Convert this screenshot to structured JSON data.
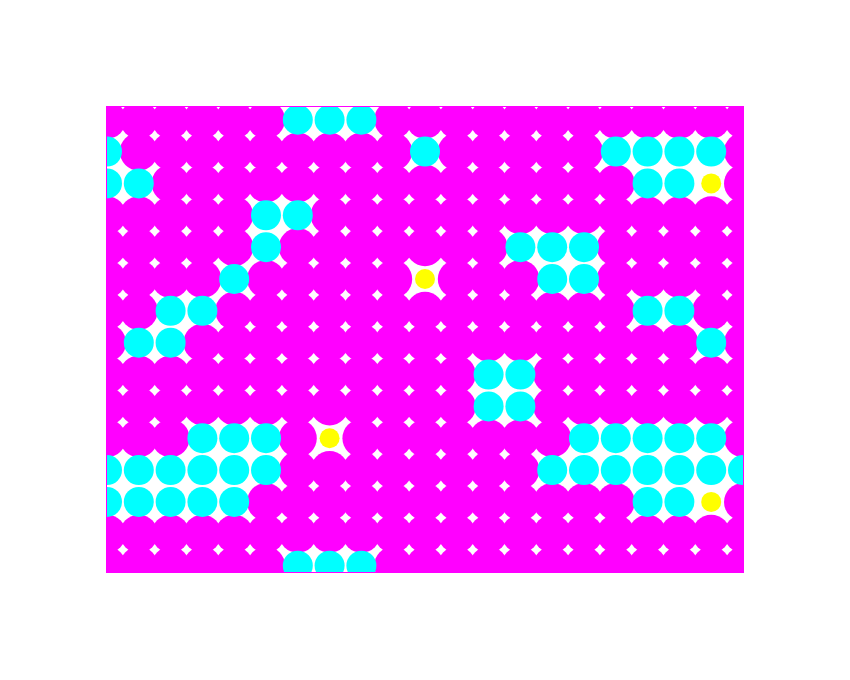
{
  "chart_data": {
    "type": "scatter",
    "xlim": [
      0,
      100
    ],
    "ylim": [
      0,
      73
    ],
    "grid": false,
    "tick_labels": false,
    "series": [
      {
        "color": "#ff00ff",
        "marker": "circle",
        "x": [
          0,
          5,
          10,
          15,
          20,
          25,
          45,
          50,
          55,
          60,
          65,
          70,
          75,
          80,
          85,
          90,
          95,
          100,
          5,
          10,
          15,
          20,
          25,
          30,
          35,
          40,
          45,
          55,
          60,
          65,
          70,
          75,
          100,
          10,
          15,
          20,
          25,
          30,
          35,
          40,
          45,
          50,
          55,
          60,
          65,
          70,
          75,
          80,
          100,
          0,
          5,
          10,
          15,
          20,
          35,
          40,
          45,
          50,
          55,
          60,
          65,
          70,
          75,
          80,
          85,
          90,
          95,
          100,
          0,
          5,
          10,
          15,
          20,
          30,
          35,
          40,
          45,
          50,
          55,
          60,
          80,
          85,
          90,
          95,
          100,
          0,
          5,
          10,
          15,
          25,
          30,
          35,
          40,
          45,
          55,
          60,
          65,
          80,
          85,
          90,
          95,
          100,
          0,
          5,
          20,
          25,
          30,
          35,
          40,
          45,
          50,
          55,
          60,
          65,
          70,
          75,
          80,
          95,
          100,
          0,
          15,
          20,
          25,
          30,
          35,
          40,
          45,
          50,
          55,
          60,
          65,
          70,
          75,
          80,
          85,
          90,
          100,
          0,
          5,
          10,
          15,
          20,
          25,
          30,
          35,
          40,
          45,
          50,
          55,
          70,
          75,
          80,
          85,
          90,
          95,
          100,
          0,
          5,
          10,
          15,
          20,
          25,
          30,
          35,
          40,
          45,
          50,
          55,
          70,
          75,
          80,
          85,
          90,
          95,
          100,
          0,
          5,
          10,
          30,
          40,
          45,
          50,
          55,
          60,
          65,
          70,
          100,
          30,
          35,
          40,
          45,
          50,
          55,
          60,
          65,
          25,
          30,
          35,
          40,
          45,
          50,
          55,
          60,
          65,
          70,
          75,
          80,
          100,
          0,
          5,
          10,
          15,
          20,
          25,
          30,
          35,
          40,
          45,
          50,
          55,
          60,
          65,
          70,
          75,
          80,
          85,
          90,
          95,
          100,
          0,
          5,
          10,
          15,
          20,
          25,
          45,
          50,
          55,
          60,
          65,
          70,
          75,
          80,
          85,
          90,
          95,
          100
        ],
        "y": [
          71,
          71,
          71,
          71,
          71,
          71,
          71,
          71,
          71,
          71,
          71,
          71,
          71,
          71,
          71,
          71,
          71,
          71,
          66,
          66,
          66,
          66,
          66,
          66,
          66,
          66,
          66,
          66,
          66,
          66,
          66,
          66,
          66,
          61,
          61,
          61,
          61,
          61,
          61,
          61,
          61,
          61,
          61,
          61,
          61,
          61,
          61,
          61,
          61,
          56,
          56,
          56,
          56,
          56,
          56,
          56,
          56,
          56,
          56,
          56,
          56,
          56,
          56,
          56,
          56,
          56,
          56,
          56,
          51,
          51,
          51,
          51,
          51,
          51,
          51,
          51,
          51,
          51,
          51,
          51,
          51,
          51,
          51,
          51,
          51,
          46,
          46,
          46,
          46,
          46,
          46,
          46,
          46,
          46,
          46,
          46,
          46,
          46,
          46,
          46,
          46,
          46,
          41,
          41,
          41,
          41,
          41,
          41,
          41,
          41,
          41,
          41,
          41,
          41,
          41,
          41,
          41,
          41,
          41,
          36,
          36,
          36,
          36,
          36,
          36,
          36,
          36,
          36,
          36,
          36,
          36,
          36,
          36,
          36,
          36,
          36,
          36,
          31,
          31,
          31,
          31,
          31,
          31,
          31,
          31,
          31,
          31,
          31,
          31,
          31,
          31,
          31,
          31,
          31,
          31,
          31,
          26,
          26,
          26,
          26,
          26,
          26,
          26,
          26,
          26,
          26,
          26,
          26,
          26,
          26,
          26,
          26,
          26,
          26,
          26,
          21,
          21,
          21,
          21,
          21,
          21,
          21,
          21,
          21,
          21,
          21,
          21,
          16,
          16,
          16,
          16,
          16,
          16,
          16,
          16,
          11,
          11,
          11,
          11,
          11,
          11,
          11,
          11,
          11,
          11,
          11,
          11,
          11,
          6,
          6,
          6,
          6,
          6,
          6,
          6,
          6,
          6,
          6,
          6,
          6,
          6,
          6,
          6,
          6,
          6,
          6,
          6,
          6,
          6,
          1,
          1,
          1,
          1,
          1,
          1,
          1,
          1,
          1,
          1,
          1,
          1,
          1,
          1,
          1,
          1,
          1,
          1
        ]
      },
      {
        "color": "#00ffff",
        "marker": "circle",
        "x": [
          30,
          35,
          40,
          0,
          50,
          80,
          85,
          90,
          95,
          0,
          5,
          85,
          90,
          25,
          30,
          25,
          65,
          70,
          75,
          20,
          70,
          75,
          10,
          15,
          85,
          90,
          5,
          10,
          95,
          60,
          65,
          60,
          65,
          15,
          20,
          25,
          75,
          80,
          85,
          90,
          95,
          0,
          5,
          10,
          15,
          20,
          25,
          70,
          75,
          80,
          85,
          90,
          95,
          100,
          0,
          5,
          10,
          15,
          20,
          85,
          90,
          30,
          35,
          40
        ],
        "y": [
          71,
          71,
          71,
          66,
          66,
          66,
          66,
          66,
          66,
          61,
          61,
          61,
          61,
          56,
          56,
          51,
          51,
          51,
          51,
          46,
          46,
          46,
          41,
          41,
          41,
          41,
          36,
          36,
          36,
          31,
          31,
          26,
          26,
          21,
          21,
          21,
          21,
          21,
          21,
          21,
          21,
          16,
          16,
          16,
          16,
          16,
          16,
          16,
          16,
          16,
          16,
          16,
          16,
          16,
          11,
          11,
          11,
          11,
          11,
          11,
          11,
          1,
          1,
          1
        ]
      },
      {
        "color": "#ffff00",
        "marker": "circle",
        "x": [
          95,
          50,
          35,
          95
        ],
        "y": [
          61,
          46,
          21,
          11
        ]
      }
    ]
  }
}
